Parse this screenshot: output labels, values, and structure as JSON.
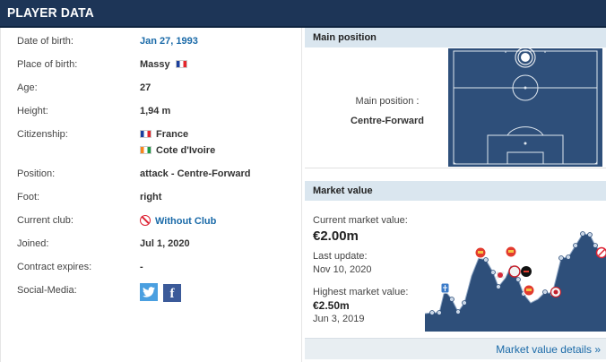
{
  "header": {
    "title": "PLAYER DATA"
  },
  "profile": {
    "rows": [
      {
        "label": "Date of birth:",
        "value": "Jan 27, 1993"
      },
      {
        "label": "Place of birth:",
        "value": "Massy"
      },
      {
        "label": "Age:",
        "value": "27"
      },
      {
        "label": "Height:",
        "value": "1,94 m"
      },
      {
        "label": "Citizenship:",
        "value": "France",
        "value2": "Cote d'Ivoire"
      },
      {
        "label": "Position:",
        "value": "attack - Centre-Forward"
      },
      {
        "label": "Foot:",
        "value": "right"
      },
      {
        "label": "Current club:",
        "value": "Without Club"
      },
      {
        "label": "Joined:",
        "value": "Jul 1, 2020"
      },
      {
        "label": "Contract expires:",
        "value": "-"
      },
      {
        "label": "Social-Media:",
        "value": ""
      }
    ],
    "social_icons": [
      "twitter-icon",
      "facebook-icon"
    ]
  },
  "main_position": {
    "header": "Main position",
    "label": "Main position :",
    "value": "Centre-Forward"
  },
  "market_value": {
    "header": "Market value",
    "current_label": "Current market value:",
    "current_value": "€2.00m",
    "update_label": "Last update:",
    "update_value": "Nov 10, 2020",
    "highest_label": "Highest market value:",
    "highest_value": "€2.50m",
    "highest_date": "Jun 3, 2019",
    "details_link": "Market value details »"
  },
  "colors": {
    "header_bg": "#1d3557",
    "box_head_bg": "#dae6ef",
    "link": "#1a6aa8",
    "chart_fill": "#2e4f7a"
  }
}
